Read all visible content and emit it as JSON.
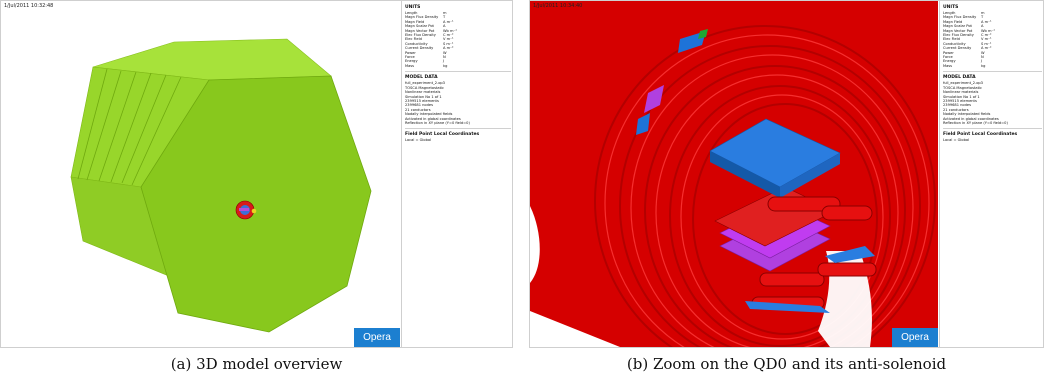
{
  "panel_a": {
    "timestamp": "1/Jul/2011 10:32:48",
    "logo": "Opera",
    "caption": "(a) 3D model overview"
  },
  "panel_b": {
    "timestamp": "1/Jul/2011 10:34:40",
    "logo": "Opera",
    "caption": "(b) Zoom on the QD0 and its anti-solenoid"
  },
  "info": {
    "units_title": "UNITS",
    "units": [
      {
        "name": "Length",
        "unit": "m"
      },
      {
        "name": "Magn Flux Density",
        "unit": "T"
      },
      {
        "name": "Magn Field",
        "unit": "A m⁻¹"
      },
      {
        "name": "Magn Scalar Pot",
        "unit": "A"
      },
      {
        "name": "Magn Vector Pot",
        "unit": "Wb m⁻¹"
      },
      {
        "name": "Elec Flux Density",
        "unit": "C m⁻²"
      },
      {
        "name": "Elec Field",
        "unit": "V m⁻¹"
      },
      {
        "name": "Conductivity",
        "unit": "S m⁻¹"
      },
      {
        "name": "Current Density",
        "unit": "A m⁻²"
      },
      {
        "name": "Power",
        "unit": "W"
      },
      {
        "name": "Force",
        "unit": "N"
      },
      {
        "name": "Energy",
        "unit": "J"
      },
      {
        "name": "Mass",
        "unit": "kg"
      }
    ],
    "model_title": "MODEL DATA",
    "model_lines": [
      "full_experiment_2.op3",
      "TOSCA Magnetostatic",
      "Nonlinear materials",
      "Simulation No 1 of 1",
      "2399515 elements",
      "2399681 nodes",
      "21 conductors",
      "Nodally interpolated fields",
      "Activated in global coordinates",
      "Reflection in XY plane (Y=0 field=0)"
    ],
    "field_title": "Field Point Local Coordinates",
    "field_lines": [
      "Local = Global"
    ]
  }
}
